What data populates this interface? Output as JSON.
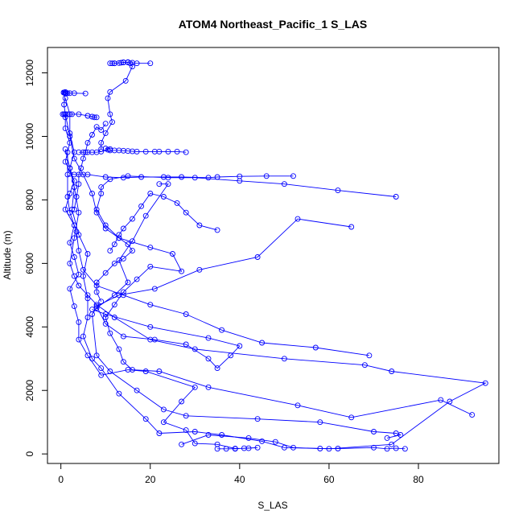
{
  "chart_data": {
    "type": "line",
    "title": "ATOM4 Northeast_Pacific_1 S_LAS",
    "xlabel": "S_LAS",
    "ylabel": "Altitude (m)",
    "xlim": [
      -3,
      98
    ],
    "ylim": [
      -300,
      12800
    ],
    "xticks": [
      0,
      20,
      40,
      60,
      80
    ],
    "yticks": [
      0,
      2000,
      4000,
      6000,
      8000,
      10000,
      12000
    ],
    "grid": false,
    "legend": "none",
    "marker": "open-circle",
    "series_color": "#0000ff",
    "series": [
      {
        "values": [
          [
            35,
            160
          ],
          [
            37,
            160
          ],
          [
            39,
            160
          ],
          [
            41,
            180
          ],
          [
            44,
            200
          ],
          [
            42,
            180
          ],
          [
            39,
            170
          ],
          [
            35,
            300
          ],
          [
            30,
            330
          ],
          [
            28,
            750
          ],
          [
            23,
            1000
          ],
          [
            27,
            1650
          ],
          [
            30,
            2100
          ],
          [
            19,
            2600
          ],
          [
            15,
            2650
          ],
          [
            9,
            2480
          ],
          [
            6,
            3100
          ],
          [
            4,
            3600
          ],
          [
            4,
            4150
          ],
          [
            3,
            4650
          ],
          [
            2,
            5200
          ],
          [
            4,
            5650
          ],
          [
            3,
            6200
          ],
          [
            2,
            6650
          ],
          [
            3,
            7200
          ],
          [
            1,
            7700
          ],
          [
            2,
            8200
          ],
          [
            3,
            8600
          ],
          [
            1,
            9200
          ],
          [
            2,
            9800
          ],
          [
            1,
            10250
          ],
          [
            1,
            10700
          ],
          [
            0.7,
            11000
          ],
          [
            1,
            11350
          ]
        ]
      },
      {
        "values": [
          [
            77,
            160
          ],
          [
            75,
            180
          ],
          [
            73,
            160
          ],
          [
            70,
            200
          ],
          [
            62,
            170
          ],
          [
            58,
            170
          ],
          [
            50,
            200
          ],
          [
            45,
            400
          ],
          [
            36,
            600
          ],
          [
            30,
            700
          ],
          [
            22,
            650
          ],
          [
            19,
            1100
          ],
          [
            13,
            1900
          ],
          [
            9,
            2700
          ],
          [
            7,
            3000
          ],
          [
            5,
            3700
          ],
          [
            6,
            4300
          ],
          [
            6,
            4900
          ],
          [
            5,
            5600
          ],
          [
            6,
            6300
          ],
          [
            4,
            6900
          ],
          [
            2.5,
            7700
          ],
          [
            3,
            8400
          ],
          [
            2,
            9000
          ],
          [
            3,
            9500
          ],
          [
            2,
            10100
          ],
          [
            2,
            10700
          ],
          [
            1,
            11200
          ]
        ]
      },
      {
        "values": [
          [
            73,
            500
          ],
          [
            76,
            600
          ],
          [
            75,
            650
          ],
          [
            70,
            700
          ],
          [
            58,
            1000
          ],
          [
            44,
            1100
          ],
          [
            28,
            1200
          ],
          [
            23,
            1400
          ],
          [
            17,
            2000
          ],
          [
            11,
            2600
          ],
          [
            8,
            3100
          ],
          [
            7,
            4400
          ],
          [
            8,
            4600
          ],
          [
            12,
            5000
          ],
          [
            15,
            5400
          ],
          [
            13,
            6100
          ],
          [
            16,
            6700
          ],
          [
            19,
            7500
          ],
          [
            24,
            8500
          ],
          [
            22,
            8500
          ]
        ]
      },
      {
        "values": [
          [
            27,
            300
          ],
          [
            33,
            600
          ],
          [
            42,
            500
          ],
          [
            48,
            380
          ],
          [
            52,
            200
          ],
          [
            60,
            160
          ],
          [
            74,
            300
          ],
          [
            87,
            1650
          ],
          [
            95,
            2230
          ],
          [
            74,
            2600
          ],
          [
            68,
            2800
          ],
          [
            50,
            3000
          ],
          [
            30,
            3300
          ],
          [
            20,
            3600
          ],
          [
            12,
            4300
          ],
          [
            8,
            4700
          ],
          [
            6,
            5000
          ],
          [
            4,
            5300
          ],
          [
            3,
            5600
          ],
          [
            2,
            6000
          ],
          [
            3,
            6800
          ],
          [
            4,
            7600
          ],
          [
            3,
            8400
          ],
          [
            2,
            9000
          ],
          [
            1,
            9600
          ]
        ]
      },
      {
        "values": [
          [
            92,
            1230
          ],
          [
            85,
            1700
          ],
          [
            65,
            1150
          ],
          [
            53,
            1530
          ],
          [
            33,
            2100
          ],
          [
            22,
            2600
          ],
          [
            16,
            2650
          ],
          [
            14,
            2900
          ],
          [
            13,
            3300
          ],
          [
            11,
            3800
          ],
          [
            10,
            4300
          ],
          [
            12,
            4700
          ],
          [
            14,
            5100
          ],
          [
            17,
            5500
          ],
          [
            20,
            5900
          ],
          [
            27,
            5750
          ],
          [
            25,
            6300
          ],
          [
            20,
            6500
          ],
          [
            13,
            6800
          ],
          [
            10,
            7100
          ],
          [
            8,
            7600
          ],
          [
            7,
            8200
          ],
          [
            5,
            8800
          ],
          [
            3,
            9300
          ],
          [
            2,
            10000
          ],
          [
            1,
            10700
          ]
        ]
      },
      {
        "values": [
          [
            69,
            3100
          ],
          [
            57,
            3350
          ],
          [
            45,
            3500
          ],
          [
            36,
            3900
          ],
          [
            28,
            4400
          ],
          [
            20,
            4700
          ],
          [
            14,
            5000
          ],
          [
            8,
            5300
          ],
          [
            5,
            5800
          ],
          [
            4,
            6400
          ],
          [
            3.5,
            7000
          ],
          [
            2,
            7600
          ],
          [
            1.5,
            8100
          ],
          [
            1.5,
            8800
          ],
          [
            1.5,
            9500
          ]
        ]
      },
      {
        "values": [
          [
            65,
            7150
          ],
          [
            53,
            7400
          ],
          [
            44,
            6200
          ],
          [
            31,
            5800
          ],
          [
            21,
            5200
          ],
          [
            13,
            5000
          ],
          [
            8,
            4650
          ],
          [
            10,
            4100
          ],
          [
            14,
            3700
          ],
          [
            21,
            3600
          ],
          [
            28,
            3450
          ],
          [
            33,
            3000
          ],
          [
            35,
            2700
          ],
          [
            38,
            3100
          ],
          [
            40,
            3400
          ],
          [
            33,
            3650
          ],
          [
            20,
            4000
          ],
          [
            10,
            4400
          ],
          [
            7,
            4550
          ]
        ]
      },
      {
        "values": [
          [
            75,
            8100
          ],
          [
            62,
            8300
          ],
          [
            50,
            8500
          ],
          [
            40,
            8600
          ],
          [
            30,
            8700
          ],
          [
            24,
            8700
          ],
          [
            15,
            8750
          ],
          [
            11,
            8650
          ],
          [
            9,
            8400
          ],
          [
            9,
            8200
          ],
          [
            8,
            7700
          ],
          [
            10,
            7200
          ],
          [
            13,
            6800
          ],
          [
            15,
            6600
          ],
          [
            16,
            6400
          ],
          [
            14,
            6150
          ],
          [
            12,
            6000
          ],
          [
            10,
            5700
          ],
          [
            8,
            5400
          ],
          [
            8,
            5100
          ],
          [
            9,
            4800
          ]
        ]
      },
      {
        "values": [
          [
            35,
            7050
          ],
          [
            31,
            7200
          ],
          [
            28,
            7600
          ],
          [
            26,
            7900
          ],
          [
            23,
            8100
          ],
          [
            20,
            8200
          ],
          [
            18,
            7800
          ],
          [
            16,
            7400
          ],
          [
            14,
            7100
          ],
          [
            13,
            6900
          ],
          [
            12,
            6600
          ],
          [
            11,
            6400
          ]
        ]
      },
      {
        "values": [
          [
            52,
            8750
          ],
          [
            46,
            8750
          ],
          [
            40,
            8740
          ],
          [
            35,
            8720
          ],
          [
            33,
            8700
          ],
          [
            27,
            8720
          ],
          [
            23,
            8720
          ],
          [
            18,
            8720
          ],
          [
            14,
            8700
          ],
          [
            10,
            8720
          ],
          [
            6,
            8800
          ],
          [
            3,
            8800
          ],
          [
            2,
            8820
          ]
        ]
      },
      {
        "values": [
          [
            28,
            9500
          ],
          [
            26,
            9520
          ],
          [
            24,
            9520
          ],
          [
            22,
            9520
          ],
          [
            21,
            9520
          ],
          [
            19,
            9520
          ],
          [
            17,
            9520
          ],
          [
            16,
            9530
          ],
          [
            15,
            9540
          ],
          [
            14,
            9550
          ],
          [
            13,
            9560
          ],
          [
            12,
            9560
          ],
          [
            11,
            9560
          ],
          [
            11,
            9600
          ],
          [
            10,
            9620
          ],
          [
            10.5,
            9580
          ],
          [
            9,
            9520
          ],
          [
            8,
            9500
          ],
          [
            7,
            9500
          ],
          [
            6,
            9500
          ],
          [
            5,
            9500
          ],
          [
            4,
            9500
          ]
        ]
      },
      {
        "values": [
          [
            6,
            10650
          ],
          [
            7,
            10620
          ],
          [
            8,
            10600
          ],
          [
            7.5,
            10600
          ],
          [
            6,
            10650
          ],
          [
            4,
            10700
          ],
          [
            2.5,
            10700
          ],
          [
            1.5,
            10700
          ],
          [
            1,
            10700
          ],
          [
            0.7,
            10700
          ],
          [
            0.4,
            10700
          ],
          [
            1,
            10600
          ]
        ]
      },
      {
        "values": [
          [
            5.5,
            11350
          ],
          [
            3,
            11360
          ],
          [
            2,
            11360
          ],
          [
            1.5,
            11360
          ],
          [
            1.2,
            11360
          ],
          [
            1,
            11360
          ],
          [
            0.8,
            11380
          ],
          [
            0.6,
            11380
          ],
          [
            1,
            11400
          ]
        ]
      },
      {
        "values": [
          [
            20,
            12300
          ],
          [
            17,
            12300
          ],
          [
            16,
            12320
          ],
          [
            15,
            12330
          ],
          [
            14,
            12330
          ],
          [
            13.5,
            12320
          ],
          [
            13,
            12310
          ],
          [
            12,
            12300
          ],
          [
            11.5,
            12300
          ],
          [
            11,
            12300
          ],
          [
            12,
            12300
          ],
          [
            14,
            12330
          ],
          [
            15,
            12340
          ],
          [
            15.5,
            12300
          ],
          [
            16,
            12200
          ],
          [
            14.5,
            11750
          ],
          [
            11,
            11400
          ],
          [
            10.5,
            11200
          ],
          [
            11,
            10700
          ],
          [
            11.5,
            10450
          ],
          [
            10,
            10100
          ],
          [
            9,
            9800
          ],
          [
            9,
            9600
          ]
        ]
      },
      {
        "values": [
          [
            10,
            10400
          ],
          [
            9,
            10200
          ],
          [
            8,
            10300
          ],
          [
            7,
            10050
          ],
          [
            6,
            9800
          ],
          [
            5.5,
            9500
          ],
          [
            5,
            9300
          ],
          [
            4.5,
            9000
          ],
          [
            4,
            8800
          ],
          [
            4,
            8500
          ],
          [
            3.5,
            8100
          ],
          [
            3,
            7700
          ]
        ]
      }
    ]
  }
}
